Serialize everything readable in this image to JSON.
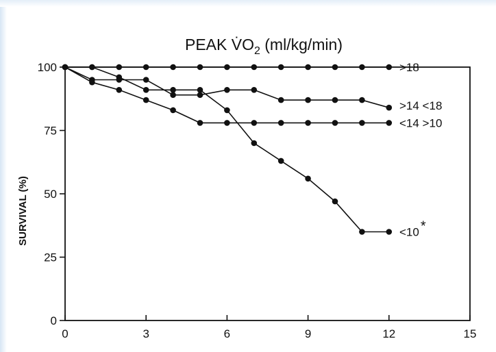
{
  "chart_data": {
    "type": "line",
    "title": "PEAK V̇O",
    "title_subscript": "2",
    "title_units": " (ml/kg/min)",
    "xlabel": "",
    "ylabel": "SURVIVAL (%)",
    "xlim": [
      0,
      15
    ],
    "ylim": [
      0,
      100
    ],
    "xticks": [
      0,
      3,
      6,
      9,
      12,
      15
    ],
    "yticks": [
      0,
      25,
      50,
      75,
      100
    ],
    "grid": false,
    "legend": "inline-right",
    "series": [
      {
        "label": ">18",
        "x": [
          0,
          1,
          2,
          3,
          4,
          5,
          6,
          7,
          8,
          9,
          10,
          11,
          12
        ],
        "y": [
          100,
          100,
          100,
          100,
          100,
          100,
          100,
          100,
          100,
          100,
          100,
          100,
          100
        ]
      },
      {
        "label": ">14 <18",
        "x": [
          0,
          1,
          2,
          3,
          4,
          5,
          6,
          7,
          8,
          9,
          10,
          11,
          12
        ],
        "y": [
          100,
          95,
          95,
          95,
          89,
          89,
          91,
          91,
          87,
          87,
          87,
          87,
          84
        ]
      },
      {
        "label": "<14 >10",
        "x": [
          0,
          1,
          2,
          3,
          4,
          5,
          6,
          7,
          8,
          9,
          10,
          11,
          12
        ],
        "y": [
          100,
          94,
          91,
          87,
          83,
          78,
          78,
          78,
          78,
          78,
          78,
          78,
          78
        ]
      },
      {
        "label": "<10",
        "label_mark": "*",
        "x": [
          0,
          1,
          2,
          3,
          4,
          5,
          6,
          7,
          8,
          9,
          10,
          11,
          12
        ],
        "y": [
          100,
          100,
          96,
          91,
          91,
          91,
          83,
          70,
          63,
          56,
          47,
          35,
          35
        ]
      }
    ]
  }
}
